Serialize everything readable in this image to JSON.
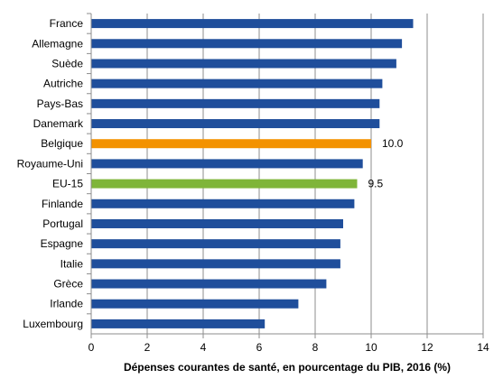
{
  "chart_data": {
    "type": "bar",
    "orientation": "horizontal",
    "categories": [
      "France",
      "Allemagne",
      "Suède",
      "Autriche",
      "Pays-Bas",
      "Danemark",
      "Belgique",
      "Royaume-Uni",
      "EU-15",
      "Finlande",
      "Portugal",
      "Espagne",
      "Italie",
      "Grèce",
      "Irlande",
      "Luxembourg"
    ],
    "values": [
      11.5,
      11.1,
      10.9,
      10.4,
      10.3,
      10.3,
      10.0,
      9.7,
      9.5,
      9.4,
      9.0,
      8.9,
      8.9,
      8.4,
      7.4,
      6.2
    ],
    "data_labels": {
      "Belgique": "10.0",
      "EU-15": "9.5"
    },
    "bar_colors": {
      "default": "#1f4e9b",
      "Belgique": "#f39200",
      "EU-15": "#7fb539"
    },
    "xlabel": "Dépenses courantes de santé, en pourcentage du PIB, 2016 (%)",
    "xlim": [
      0,
      14
    ],
    "xticks": [
      0,
      2,
      4,
      6,
      8,
      10,
      12,
      14
    ],
    "grid": "vertical"
  }
}
